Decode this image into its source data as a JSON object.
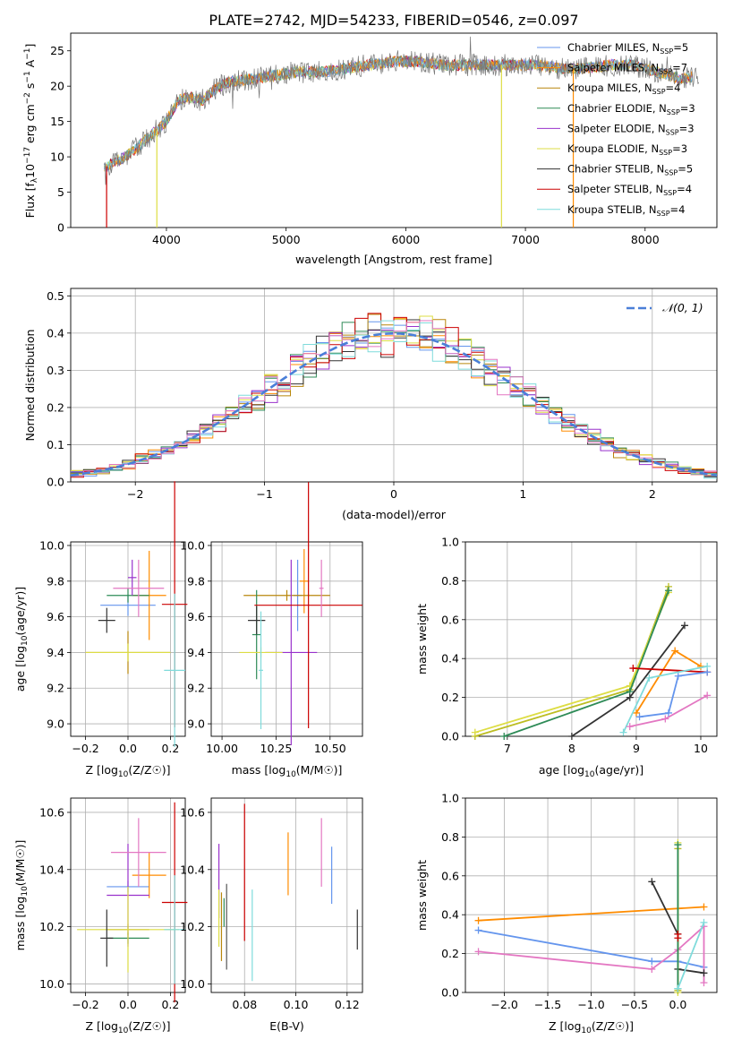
{
  "figure_title": "PLATE=2742, MJD=54233, FIBERID=0546, z=0.097",
  "series_colors": {
    "Chabrier MILES": "#6495ed",
    "Salpeter MILES": "#ff8c00",
    "Kroupa MILES": "#b8860b",
    "Chabrier ELODIE": "#2e8b57",
    "Salpeter ELODIE": "#9932cc",
    "Kroupa ELODIE": "#dddd44",
    "Chabrier STELIB": "#333333",
    "Salpeter STELIB": "#cc0000",
    "Kroupa STELIB": "#7fdbdb",
    "normal_curve": "#4a7fd8"
  },
  "chart_data": [
    {
      "id": "spectrum",
      "type": "line",
      "title": "PLATE=2742, MJD=54233, FIBERID=0546, z=0.097",
      "xlabel": "wavelength [Angstrom, rest frame]",
      "ylabel": "Flux [f_λ 10^-17 erg cm^-2 s^-1 A^-1]",
      "xlim": [
        3200,
        8600
      ],
      "ylim": [
        0,
        27.5
      ],
      "xticks": [
        4000,
        5000,
        6000,
        7000,
        8000
      ],
      "yticks": [
        0,
        5,
        10,
        15,
        20,
        25
      ],
      "grid": false,
      "legend_position": "top-right",
      "legend": [
        {
          "name": "Chabrier MILES",
          "sub": "SSP",
          "value": "5"
        },
        {
          "name": "Salpeter MILES",
          "sub": "SSP",
          "value": "7"
        },
        {
          "name": "Kroupa MILES",
          "sub": "SSP",
          "value": "4"
        },
        {
          "name": "Chabrier ELODIE",
          "sub": "SSP",
          "value": "3"
        },
        {
          "name": "Salpeter ELODIE",
          "sub": "SSP",
          "value": "3"
        },
        {
          "name": "Kroupa ELODIE",
          "sub": "SSP",
          "value": "3"
        },
        {
          "name": "Chabrier STELIB",
          "sub": "SSP",
          "value": "5"
        },
        {
          "name": "Salpeter STELIB",
          "sub": "SSP",
          "value": "4"
        },
        {
          "name": "Kroupa STELIB",
          "sub": "SSP",
          "value": "4"
        }
      ],
      "continuum": [
        [
          3480,
          8.5
        ],
        [
          3600,
          9.5
        ],
        [
          3700,
          10.5
        ],
        [
          3800,
          12
        ],
        [
          3900,
          13.5
        ],
        [
          4000,
          15
        ],
        [
          4100,
          18
        ],
        [
          4200,
          18.5
        ],
        [
          4300,
          18
        ],
        [
          4400,
          19.5
        ],
        [
          4500,
          20.5
        ],
        [
          4700,
          21
        ],
        [
          4900,
          21.5
        ],
        [
          5100,
          22
        ],
        [
          5300,
          22
        ],
        [
          5500,
          22.5
        ],
        [
          5700,
          23
        ],
        [
          5900,
          23.5
        ],
        [
          6100,
          23.5
        ],
        [
          6300,
          23
        ],
        [
          6500,
          23
        ],
        [
          6700,
          23
        ],
        [
          6900,
          23
        ],
        [
          7100,
          23
        ],
        [
          7300,
          22.5
        ],
        [
          7500,
          22.5
        ],
        [
          7700,
          23
        ],
        [
          7900,
          23
        ],
        [
          8100,
          22
        ],
        [
          8300,
          21
        ],
        [
          8450,
          21.5
        ]
      ],
      "drops": [
        {
          "x": 3500,
          "series": "Salpeter STELIB"
        },
        {
          "x": 3920,
          "series": "Kroupa ELODIE"
        },
        {
          "x": 6800,
          "series": "Kroupa ELODIE"
        },
        {
          "x": 7400,
          "series": "Salpeter MILES"
        }
      ]
    },
    {
      "id": "residuals",
      "type": "histogram",
      "xlabel": "(data-model)/error",
      "ylabel": "Normed distribution",
      "xlim": [
        -2.5,
        2.5
      ],
      "ylim": [
        0,
        0.52
      ],
      "xticks": [
        -2,
        -1,
        0,
        1,
        2
      ],
      "yticks": [
        0.0,
        0.1,
        0.2,
        0.3,
        0.4,
        0.5
      ],
      "grid": true,
      "legend_position": "top-right",
      "normal_label": "𝒩(0, 1)",
      "bin_width": 0.1
    },
    {
      "id": "age_vs_Z",
      "type": "errorbar",
      "xlabel": "Z [log10(Z/Z☉)]",
      "ylabel": "age  [log10(age/yr)]",
      "xlim": [
        -0.27,
        0.27
      ],
      "ylim": [
        8.93,
        10.02
      ],
      "xticks": [
        -0.2,
        0.0,
        0.2
      ],
      "yticks": [
        9.0,
        9.2,
        9.4,
        9.6,
        9.8,
        10.0
      ],
      "grid": true,
      "points": [
        {
          "series": "Chabrier MILES",
          "x": 0.0,
          "xerr": 0.13,
          "y": 9.665,
          "yerr": 0.06
        },
        {
          "series": "Salpeter MILES",
          "x": 0.1,
          "xerr": 0.08,
          "y": 9.72,
          "yerr": 0.25
        },
        {
          "series": "Kroupa MILES",
          "x": 0.0,
          "xerr": 0.2,
          "y": 9.4,
          "yerr": 0.12
        },
        {
          "series": "Chabrier ELODIE",
          "x": 0.0,
          "xerr": 0.1,
          "y": 9.72,
          "yerr": 0.04
        },
        {
          "series": "Salpeter ELODIE",
          "x": 0.02,
          "xerr": 0.02,
          "y": 9.82,
          "yerr": 0.1
        },
        {
          "series": "Kroupa ELODIE",
          "x": 0.0,
          "xerr": 0.2,
          "y": 9.4,
          "yerr": 0.05
        },
        {
          "series": "Chabrier STELIB",
          "x": -0.1,
          "xerr": 0.04,
          "y": 9.58,
          "yerr": 0.07
        },
        {
          "series": "Salpeter STELIB",
          "x": 0.22,
          "xerr": 0.06,
          "y": 9.67,
          "yerr": 0.69
        },
        {
          "series": "Kroupa STELIB",
          "x": 0.22,
          "xerr": 0.05,
          "y": 9.3,
          "yerr": 0.43
        },
        {
          "series": "Salpeter MILES pink",
          "color": "#e377c2",
          "x": 0.05,
          "xerr": 0.12,
          "y": 9.76,
          "yerr": 0.16
        }
      ]
    },
    {
      "id": "age_vs_mass",
      "type": "errorbar",
      "xlabel": "mass [log10(M/M☉)]",
      "ylabel": "",
      "xlim": [
        9.95,
        10.65
      ],
      "ylim": [
        8.93,
        10.02
      ],
      "xticks": [
        10.0,
        10.25,
        10.5
      ],
      "xtick_labels": [
        "10.00",
        "10.25",
        "10.50"
      ],
      "yticks": [
        9.0,
        9.2,
        9.4,
        9.6,
        9.8,
        10.0
      ],
      "grid": true,
      "points": [
        {
          "series": "Chabrier MILES",
          "x": 10.35,
          "xerr": 0.02,
          "y": 9.72,
          "yerr": 0.2
        },
        {
          "series": "Salpeter MILES",
          "x": 10.38,
          "xerr": 0.02,
          "y": 9.8,
          "yerr": 0.18
        },
        {
          "series": "Kroupa MILES",
          "x": 10.3,
          "xerr": 0.2,
          "y": 9.72,
          "yerr": 0.03
        },
        {
          "series": "Chabrier ELODIE",
          "x": 10.16,
          "xerr": 0.02,
          "y": 9.5,
          "yerr": 0.25
        },
        {
          "series": "Salpeter ELODIE",
          "x": 10.32,
          "xerr": 0.12,
          "y": 9.4,
          "yerr": 0.52
        },
        {
          "series": "Kroupa ELODIE",
          "x": 10.18,
          "xerr": 0.1,
          "y": 9.4,
          "yerr": 0.03
        },
        {
          "series": "Chabrier STELIB",
          "x": 10.16,
          "xerr": 0.04,
          "y": 9.58,
          "yerr": 0.08
        },
        {
          "series": "Salpeter STELIB",
          "x": 10.4,
          "xerr": 0.25,
          "y": 9.665,
          "yerr": 0.69
        },
        {
          "series": "Kroupa STELIB",
          "x": 10.18,
          "xerr": 0.01,
          "y": 9.3,
          "yerr": 0.33
        },
        {
          "series": "pink",
          "color": "#e377c2",
          "x": 10.46,
          "xerr": 0.01,
          "y": 9.76,
          "yerr": 0.16
        }
      ]
    },
    {
      "id": "massweight_vs_age",
      "type": "line",
      "xlabel": "age  [log10(age/yr)]",
      "ylabel": "mass weight",
      "xlim": [
        6.35,
        10.25
      ],
      "ylim": [
        0,
        1.0
      ],
      "xticks": [
        7,
        8,
        9,
        10
      ],
      "yticks": [
        0.0,
        0.2,
        0.4,
        0.6,
        0.8,
        1.0
      ],
      "grid": true,
      "lines": [
        {
          "color": "#bcbd22",
          "points": [
            [
              6.5,
              0.0
            ],
            [
              8.9,
              0.24
            ],
            [
              9.5,
              0.77
            ]
          ]
        },
        {
          "color": "#dddd44",
          "points": [
            [
              6.5,
              0.02
            ],
            [
              8.9,
              0.26
            ],
            [
              9.5,
              0.74
            ]
          ]
        },
        {
          "color": "#2e8b57",
          "points": [
            [
              6.95,
              0.0
            ],
            [
              8.9,
              0.23
            ],
            [
              9.5,
              0.75
            ]
          ]
        },
        {
          "color": "#333333",
          "points": [
            [
              8.0,
              0.0
            ],
            [
              8.9,
              0.2
            ],
            [
              9.75,
              0.57
            ]
          ]
        },
        {
          "color": "#ff8c00",
          "points": [
            [
              9.0,
              0.12
            ],
            [
              9.6,
              0.44
            ],
            [
              10.0,
              0.36
            ]
          ]
        },
        {
          "color": "#cc0000",
          "points": [
            [
              8.95,
              0.35
            ],
            [
              10.1,
              0.33
            ]
          ]
        },
        {
          "color": "#6495ed",
          "points": [
            [
              9.05,
              0.1
            ],
            [
              9.5,
              0.12
            ],
            [
              9.65,
              0.31
            ],
            [
              10.1,
              0.33
            ]
          ]
        },
        {
          "color": "#7fdbdb",
          "points": [
            [
              8.8,
              0.02
            ],
            [
              9.2,
              0.3
            ],
            [
              10.1,
              0.36
            ]
          ]
        },
        {
          "color": "#e377c2",
          "points": [
            [
              8.9,
              0.05
            ],
            [
              9.45,
              0.09
            ],
            [
              10.1,
              0.21
            ]
          ]
        }
      ]
    },
    {
      "id": "mass_vs_Z",
      "type": "errorbar",
      "xlabel": "Z [log10(Z/Z☉)]",
      "ylabel": "mass [log10(M/M☉)]",
      "xlim": [
        -0.27,
        0.27
      ],
      "ylim": [
        9.97,
        10.65
      ],
      "xticks": [
        -0.2,
        0.0,
        0.2
      ],
      "yticks": [
        10.0,
        10.2,
        10.4,
        10.6
      ],
      "grid": true,
      "points": [
        {
          "series": "Chabrier MILES",
          "x": 0.0,
          "xerr": 0.1,
          "y": 10.34,
          "yerr": 0.02
        },
        {
          "series": "Salpeter MILES",
          "x": 0.1,
          "xerr": 0.08,
          "y": 10.38,
          "yerr": 0.08
        },
        {
          "series": "Kroupa MILES",
          "x": 0.0,
          "xerr": 0.1,
          "y": 10.19,
          "yerr": 0.02
        },
        {
          "series": "Chabrier ELODIE",
          "x": 0.0,
          "xerr": 0.1,
          "y": 10.16,
          "yerr": 0.02
        },
        {
          "series": "Salpeter ELODIE",
          "x": 0.0,
          "xerr": 0.1,
          "y": 10.31,
          "yerr": 0.18
        },
        {
          "series": "Kroupa ELODIE",
          "x": 0.0,
          "xerr": 0.24,
          "y": 10.19,
          "yerr": 0.15
        },
        {
          "series": "Chabrier STELIB",
          "x": -0.1,
          "xerr": 0.03,
          "y": 10.16,
          "yerr": 0.1
        },
        {
          "series": "Salpeter STELIB",
          "x": 0.22,
          "xerr": 0.06,
          "y": 10.285,
          "yerr": 0.35
        },
        {
          "series": "Kroupa STELIB",
          "x": 0.22,
          "xerr": 0.05,
          "y": 10.19,
          "yerr": 0.19
        },
        {
          "series": "pink",
          "color": "#e377c2",
          "x": 0.05,
          "xerr": 0.13,
          "y": 10.46,
          "yerr": 0.12
        }
      ]
    },
    {
      "id": "mass_vs_ebv",
      "type": "errorbar",
      "xlabel": "E(B-V)",
      "ylabel": "",
      "xlim": [
        0.067,
        0.126
      ],
      "ylim": [
        9.97,
        10.65
      ],
      "xticks": [
        0.08,
        0.1,
        0.12
      ],
      "xtick_labels": [
        "0.08",
        "0.10",
        "0.12"
      ],
      "yticks": [
        10.0,
        10.2,
        10.4,
        10.6
      ],
      "grid": true,
      "points": [
        {
          "series": "Chabrier MILES",
          "x": 0.114,
          "xerr": 0,
          "y": 10.38,
          "yerr": 0.1
        },
        {
          "series": "Salpeter MILES",
          "x": 0.097,
          "xerr": 0,
          "y": 10.42,
          "yerr": 0.11
        },
        {
          "series": "Kroupa MILES",
          "x": 0.071,
          "xerr": 0,
          "y": 10.2,
          "yerr": 0.12
        },
        {
          "series": "Chabrier ELODIE",
          "x": 0.072,
          "xerr": 0,
          "y": 10.25,
          "yerr": 0.05
        },
        {
          "series": "Salpeter ELODIE",
          "x": 0.07,
          "xerr": 0,
          "y": 10.36,
          "yerr": 0.13
        },
        {
          "series": "Kroupa ELODIE",
          "x": 0.07,
          "xerr": 0,
          "y": 10.23,
          "yerr": 0.1
        },
        {
          "series": "Chabrier STELIB",
          "x": 0.124,
          "xerr": 0,
          "y": 10.19,
          "yerr": 0.07
        },
        {
          "series": "Salpeter STELIB",
          "x": 0.08,
          "xerr": 0,
          "y": 10.39,
          "yerr": 0.24
        },
        {
          "series": "Kroupa STELIB",
          "x": 0.083,
          "xerr": 0,
          "y": 10.17,
          "yerr": 0.16
        },
        {
          "series": "pink",
          "color": "#e377c2",
          "x": 0.11,
          "xerr": 0,
          "y": 10.46,
          "yerr": 0.12
        },
        {
          "series": "dark2",
          "color": "#555555",
          "x": 0.073,
          "xerr": 0,
          "y": 10.2,
          "yerr": 0.15
        }
      ]
    },
    {
      "id": "massweight_vs_Z",
      "type": "line",
      "xlabel": "Z [log10(Z/Z☉)]",
      "ylabel": "mass weight",
      "xlim": [
        -2.45,
        0.45
      ],
      "ylim": [
        0,
        1.0
      ],
      "xticks": [
        -2.0,
        -1.5,
        -1.0,
        -0.5,
        0.0
      ],
      "xtick_labels": [
        "−2.0",
        "−1.5",
        "−1.0",
        "−0.5",
        "0.0"
      ],
      "yticks": [
        0.0,
        0.2,
        0.4,
        0.6,
        0.8,
        1.0
      ],
      "grid": true,
      "lines": [
        {
          "color": "#ff8c00",
          "points": [
            [
              -2.3,
              0.37
            ],
            [
              0.3,
              0.44
            ]
          ]
        },
        {
          "color": "#6495ed",
          "points": [
            [
              -2.3,
              0.32
            ],
            [
              -0.3,
              0.16
            ],
            [
              0.0,
              0.16
            ],
            [
              0.3,
              0.13
            ]
          ]
        },
        {
          "color": "#e377c2",
          "points": [
            [
              -2.3,
              0.21
            ],
            [
              -0.3,
              0.12
            ],
            [
              0.0,
              0.22
            ],
            [
              0.3,
              0.34
            ],
            [
              0.3,
              0.05
            ]
          ]
        },
        {
          "color": "#333333",
          "points": [
            [
              -0.3,
              0.57
            ],
            [
              0.0,
              0.3
            ],
            [
              0.0,
              0.12
            ],
            [
              0.3,
              0.1
            ]
          ]
        },
        {
          "color": "#dddd44",
          "points": [
            [
              0.0,
              0.77
            ],
            [
              0.0,
              0.0
            ]
          ]
        },
        {
          "color": "#bcbd22",
          "points": [
            [
              0.0,
              0.74
            ],
            [
              0.0,
              0.01
            ]
          ]
        },
        {
          "color": "#2e8b57",
          "points": [
            [
              0.0,
              0.76
            ],
            [
              0.0,
              0.02
            ]
          ]
        },
        {
          "color": "#cc0000",
          "points": [
            [
              0.0,
              0.3
            ],
            [
              0.0,
              0.28
            ]
          ]
        },
        {
          "color": "#7fdbdb",
          "points": [
            [
              0.0,
              0.02
            ],
            [
              0.3,
              0.36
            ]
          ]
        }
      ]
    }
  ]
}
